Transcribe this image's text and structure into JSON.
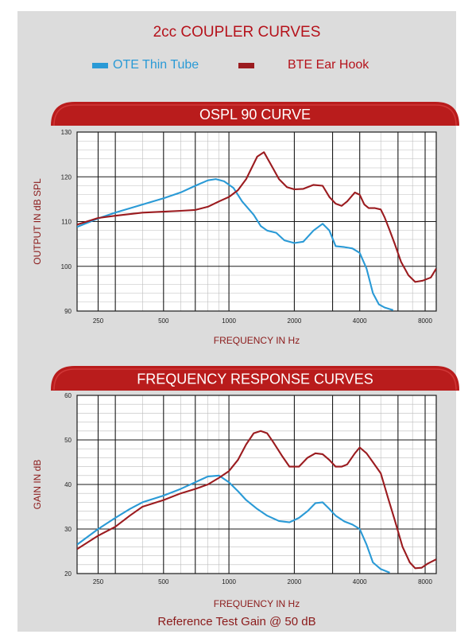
{
  "title": "2cc COUPLER CURVES",
  "legend": [
    {
      "label": "OTE Thin Tube",
      "color": "#2a9ad6"
    },
    {
      "label": "BTE Ear Hook",
      "color": "#9b1b1f"
    }
  ],
  "footer": "Reference Test Gain @ 50 dB",
  "chart_data": [
    {
      "type": "line",
      "title": "OSPL 90 CURVE",
      "xlabel": "FREQUENCY IN Hz",
      "ylabel": "OUTPUT IN dB SPL",
      "x_scale": "log",
      "xlim": [
        200,
        9000
      ],
      "ylim": [
        90,
        130
      ],
      "x_ticks": [
        250,
        500,
        1000,
        2000,
        4000,
        8000
      ],
      "x_tick_labels": [
        "250",
        "500",
        "1000",
        "2000",
        "4000",
        "8000"
      ],
      "y_ticks": [
        90,
        100,
        110,
        120,
        130
      ],
      "y_tick_labels": [
        "90",
        "100",
        "110",
        "120",
        "130"
      ],
      "grid": true,
      "series": [
        {
          "name": "OTE Thin Tube",
          "color": "#2a9ad6",
          "x": [
            200,
            250,
            300,
            400,
            500,
            600,
            700,
            800,
            870,
            950,
            1050,
            1150,
            1300,
            1400,
            1500,
            1650,
            1800,
            2000,
            2200,
            2450,
            2700,
            2900,
            3100,
            3400,
            3700,
            4000,
            4300,
            4600,
            4900,
            5200,
            5700
          ],
          "y": [
            108.8,
            110.7,
            112,
            113.8,
            115.2,
            116.5,
            118,
            119.2,
            119.5,
            119,
            117.5,
            114.5,
            111.5,
            109,
            108,
            107.5,
            105.8,
            105.2,
            105.5,
            108,
            109.5,
            108,
            104.5,
            104.3,
            104,
            103,
            99.5,
            94,
            91.5,
            90.8,
            90.2
          ]
        },
        {
          "name": "BTE Ear Hook",
          "color": "#9b1b1f",
          "x": [
            200,
            250,
            300,
            400,
            500,
            600,
            700,
            800,
            900,
            1000,
            1100,
            1200,
            1350,
            1450,
            1550,
            1700,
            1850,
            2000,
            2200,
            2450,
            2700,
            2900,
            3100,
            3300,
            3500,
            3800,
            4000,
            4200,
            4400,
            4700,
            5000,
            5200,
            5500,
            5800,
            6200,
            6700,
            7200,
            7800,
            8500,
            9000
          ],
          "y": [
            109.3,
            110.8,
            111.3,
            112,
            112.2,
            112.4,
            112.6,
            113.3,
            114.5,
            115.5,
            117,
            119.5,
            124.5,
            125.5,
            123,
            119.5,
            117.7,
            117.2,
            117.3,
            118.2,
            118,
            115.5,
            114,
            113.5,
            114.5,
            116.5,
            116,
            113.8,
            113,
            113,
            112.7,
            111,
            108,
            105,
            101,
            98,
            96.5,
            96.8,
            97.5,
            99.5
          ]
        }
      ]
    },
    {
      "type": "line",
      "title": "FREQUENCY RESPONSE CURVES",
      "xlabel": "FREQUENCY IN Hz",
      "ylabel": "GAIN IN dB",
      "x_scale": "log",
      "xlim": [
        200,
        9000
      ],
      "ylim": [
        20,
        60
      ],
      "x_ticks": [
        250,
        500,
        1000,
        2000,
        4000,
        8000
      ],
      "x_tick_labels": [
        "250",
        "500",
        "1000",
        "2000",
        "4000",
        "8000"
      ],
      "y_ticks": [
        20,
        30,
        40,
        50,
        60
      ],
      "y_tick_labels": [
        "20",
        "30",
        "40",
        "50",
        "60"
      ],
      "grid": true,
      "series": [
        {
          "name": "OTE Thin Tube",
          "color": "#2a9ad6",
          "x": [
            200,
            250,
            300,
            350,
            400,
            500,
            600,
            700,
            800,
            900,
            1000,
            1100,
            1200,
            1350,
            1500,
            1700,
            1900,
            2100,
            2300,
            2500,
            2700,
            2900,
            3100,
            3400,
            3700,
            4000,
            4300,
            4600,
            5000,
            5500
          ],
          "y": [
            26.5,
            30,
            32.5,
            34.5,
            36,
            37.5,
            39,
            40.5,
            41.8,
            42,
            40.5,
            38.5,
            36.5,
            34.5,
            33,
            31.8,
            31.5,
            32.5,
            34,
            35.8,
            36,
            34.5,
            33,
            31.7,
            31,
            30,
            26.5,
            22.5,
            21,
            20.2
          ]
        },
        {
          "name": "BTE Ear Hook",
          "color": "#9b1b1f",
          "x": [
            200,
            250,
            300,
            350,
            400,
            500,
            600,
            700,
            800,
            900,
            1000,
            1100,
            1200,
            1300,
            1400,
            1500,
            1600,
            1750,
            1900,
            2100,
            2300,
            2500,
            2700,
            2900,
            3100,
            3300,
            3500,
            3800,
            4000,
            4300,
            4600,
            5000,
            5400,
            5800,
            6300,
            6800,
            7200,
            7700,
            8200,
            9000
          ],
          "y": [
            25.5,
            28.5,
            30.5,
            33,
            35,
            36.5,
            38,
            39,
            40,
            41.5,
            43,
            45.5,
            49,
            51.5,
            52,
            51.5,
            49.5,
            46.5,
            44,
            44,
            46,
            47,
            46.8,
            45.5,
            44,
            44,
            44.5,
            47,
            48.3,
            47,
            45,
            42.5,
            37,
            32,
            26,
            22.5,
            21.2,
            21.3,
            22.2,
            23.2
          ]
        }
      ]
    }
  ]
}
